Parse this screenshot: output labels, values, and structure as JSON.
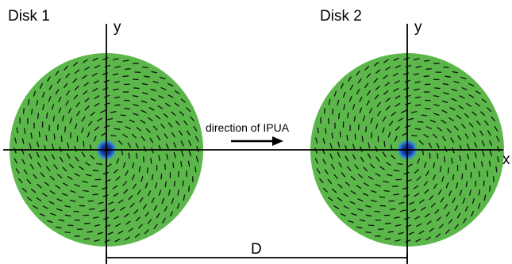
{
  "disk1": {
    "title": "Disk 1",
    "y_label": "y"
  },
  "disk2": {
    "title": "Disk 2",
    "y_label": "y"
  },
  "x_axis_label": "x",
  "direction_label": "direction of IPUA",
  "distance_label": "D",
  "colors": {
    "disk_fill": "#5cb74a",
    "core_inner": "#1a3aa0",
    "core_glow": "#2f8fd6",
    "dash": "#111111",
    "axis": "#000000"
  }
}
